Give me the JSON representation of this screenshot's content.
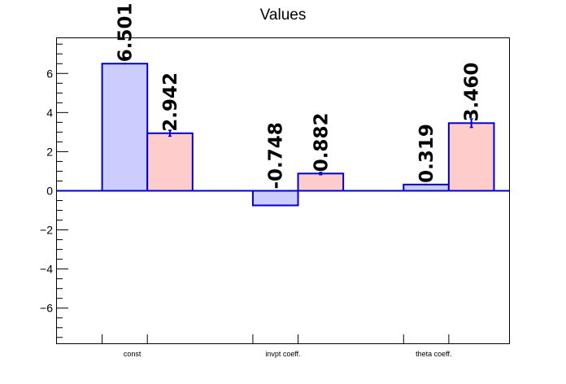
{
  "chart_data": {
    "type": "bar",
    "title": "Values",
    "categories": [
      "const",
      "invpt coeff.",
      "theta coeff."
    ],
    "series": [
      {
        "values": [
          6.501,
          -0.748,
          0.319
        ],
        "errors": [
          0.0,
          0.0,
          0.0
        ],
        "fill": "#ccccff",
        "stroke": "#0000cc"
      },
      {
        "values": [
          2.942,
          0.882,
          3.46
        ],
        "errors": [
          0.15,
          0.06,
          0.22
        ],
        "fill": "#ffcccc",
        "stroke": "#0000cc"
      }
    ],
    "data_labels": [
      [
        "6.501",
        "-0.748",
        "0.319"
      ],
      [
        "2.942",
        "0.882",
        "3.460"
      ]
    ],
    "ylim": [
      -7.8,
      7.8
    ],
    "yticks": [
      -6,
      -4,
      -2,
      0,
      2,
      4,
      6
    ],
    "ytick_labels": [
      "−6",
      "−4",
      "−2",
      "0",
      "2",
      "4",
      "6"
    ],
    "grid": false,
    "legend": "none",
    "xlabel": "",
    "ylabel": ""
  }
}
